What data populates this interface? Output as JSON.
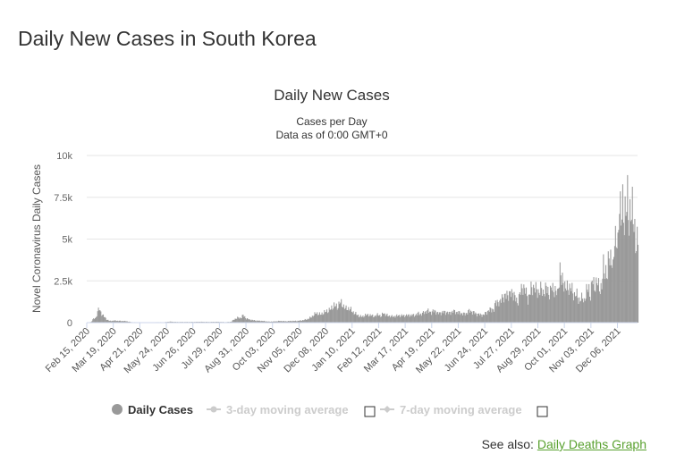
{
  "page": {
    "title": "Daily New Cases in South Korea",
    "see_also_prefix": "See also:",
    "see_also_link": "Daily Deaths Graph"
  },
  "colors": {
    "bars": "#999999",
    "grid": "#e6e6e6",
    "link": "#59a12f",
    "legend_inactive": "#cccccc"
  },
  "chart_data": {
    "type": "bar",
    "title": "Daily New Cases",
    "subtitle_lines": [
      "Cases per Day",
      "Data as of 0:00 GMT+0"
    ],
    "ylabel": "Novel Coronavirus Daily Cases",
    "xlabel": "",
    "ylim": [
      0,
      10000
    ],
    "y_ticks": [
      0,
      2500,
      5000,
      7500,
      10000
    ],
    "y_tick_labels": [
      "0",
      "2.5k",
      "5k",
      "7.5k",
      "10k"
    ],
    "x_range": [
      "2020-02-15",
      "2021-12-31"
    ],
    "x_tick_dates": [
      "2020-02-15",
      "2020-03-19",
      "2020-04-21",
      "2020-05-24",
      "2020-06-26",
      "2020-07-29",
      "2020-08-31",
      "2020-10-03",
      "2020-11-05",
      "2020-12-08",
      "2021-01-10",
      "2021-02-12",
      "2021-03-17",
      "2021-04-19",
      "2021-05-22",
      "2021-06-24",
      "2021-07-27",
      "2021-08-29",
      "2021-10-01",
      "2021-11-03",
      "2021-12-06"
    ],
    "x_tick_labels": [
      "Feb 15, 2020",
      "Mar 19, 2020",
      "Apr 21, 2020",
      "May 24, 2020",
      "Jun 26, 2020",
      "Jul 29, 2020",
      "Aug 31, 2020",
      "Oct 03, 2020",
      "Nov 05, 2020",
      "Dec 08, 2020",
      "Jan 10, 2021",
      "Feb 12, 2021",
      "Mar 17, 2021",
      "Apr 19, 2021",
      "May 22, 2021",
      "Jun 24, 2021",
      "Jul 27, 2021",
      "Aug 29, 2021",
      "Oct 01, 2021",
      "Nov 03, 2021",
      "Dec 06, 2021"
    ],
    "series": [
      {
        "name": "Daily Cases",
        "values": [
          [
            "2020-02-15",
            0
          ],
          [
            "2020-02-20",
            40
          ],
          [
            "2020-02-22",
            200
          ],
          [
            "2020-02-24",
            230
          ],
          [
            "2020-02-26",
            300
          ],
          [
            "2020-02-28",
            700
          ],
          [
            "2020-03-01",
            800
          ],
          [
            "2020-03-03",
            600
          ],
          [
            "2020-03-05",
            480
          ],
          [
            "2020-03-07",
            360
          ],
          [
            "2020-03-10",
            200
          ],
          [
            "2020-03-14",
            100
          ],
          [
            "2020-03-20",
            120
          ],
          [
            "2020-03-27",
            100
          ],
          [
            "2020-04-03",
            90
          ],
          [
            "2020-04-10",
            30
          ],
          [
            "2020-04-17",
            20
          ],
          [
            "2020-04-25",
            10
          ],
          [
            "2020-05-05",
            5
          ],
          [
            "2020-05-12",
            30
          ],
          [
            "2020-05-20",
            20
          ],
          [
            "2020-05-28",
            60
          ],
          [
            "2020-06-05",
            40
          ],
          [
            "2020-06-15",
            40
          ],
          [
            "2020-06-25",
            40
          ],
          [
            "2020-07-05",
            50
          ],
          [
            "2020-07-15",
            40
          ],
          [
            "2020-07-25",
            50
          ],
          [
            "2020-08-05",
            30
          ],
          [
            "2020-08-12",
            50
          ],
          [
            "2020-08-16",
            200
          ],
          [
            "2020-08-20",
            290
          ],
          [
            "2020-08-24",
            280
          ],
          [
            "2020-08-27",
            440
          ],
          [
            "2020-08-31",
            240
          ],
          [
            "2020-09-05",
            170
          ],
          [
            "2020-09-12",
            120
          ],
          [
            "2020-09-20",
            100
          ],
          [
            "2020-09-28",
            60
          ],
          [
            "2020-10-05",
            70
          ],
          [
            "2020-10-12",
            100
          ],
          [
            "2020-10-19",
            80
          ],
          [
            "2020-10-26",
            100
          ],
          [
            "2020-11-02",
            100
          ],
          [
            "2020-11-09",
            140
          ],
          [
            "2020-11-16",
            220
          ],
          [
            "2020-11-21",
            380
          ],
          [
            "2020-11-26",
            580
          ],
          [
            "2020-12-01",
            480
          ],
          [
            "2020-12-06",
            620
          ],
          [
            "2020-12-10",
            700
          ],
          [
            "2020-12-14",
            800
          ],
          [
            "2020-12-18",
            1050
          ],
          [
            "2020-12-22",
            900
          ],
          [
            "2020-12-25",
            1230
          ],
          [
            "2020-12-29",
            1040
          ],
          [
            "2021-01-02",
            820
          ],
          [
            "2021-01-06",
            860
          ],
          [
            "2021-01-10",
            650
          ],
          [
            "2021-01-14",
            520
          ],
          [
            "2021-01-18",
            400
          ],
          [
            "2021-01-22",
            350
          ],
          [
            "2021-01-26",
            450
          ],
          [
            "2021-01-30",
            460
          ],
          [
            "2021-02-03",
            420
          ],
          [
            "2021-02-07",
            380
          ],
          [
            "2021-02-11",
            500
          ],
          [
            "2021-02-15",
            350
          ],
          [
            "2021-02-17",
            620
          ],
          [
            "2021-02-20",
            460
          ],
          [
            "2021-02-25",
            400
          ],
          [
            "2021-03-01",
            360
          ],
          [
            "2021-03-08",
            420
          ],
          [
            "2021-03-15",
            420
          ],
          [
            "2021-03-22",
            440
          ],
          [
            "2021-03-29",
            450
          ],
          [
            "2021-04-02",
            550
          ],
          [
            "2021-04-06",
            500
          ],
          [
            "2021-04-10",
            650
          ],
          [
            "2021-04-14",
            700
          ],
          [
            "2021-04-18",
            600
          ],
          [
            "2021-04-22",
            720
          ],
          [
            "2021-04-26",
            550
          ],
          [
            "2021-05-01",
            600
          ],
          [
            "2021-05-05",
            640
          ],
          [
            "2021-05-10",
            560
          ],
          [
            "2021-05-15",
            680
          ],
          [
            "2021-05-20",
            620
          ],
          [
            "2021-05-25",
            560
          ],
          [
            "2021-05-30",
            500
          ],
          [
            "2021-06-04",
            700
          ],
          [
            "2021-06-09",
            620
          ],
          [
            "2021-06-14",
            500
          ],
          [
            "2021-06-18",
            480
          ],
          [
            "2021-06-22",
            450
          ],
          [
            "2021-06-25",
            600
          ],
          [
            "2021-06-28",
            700
          ],
          [
            "2021-07-01",
            800
          ],
          [
            "2021-07-03",
            800
          ],
          [
            "2021-07-05",
            750
          ],
          [
            "2021-07-07",
            1200
          ],
          [
            "2021-07-09",
            1300
          ],
          [
            "2021-07-12",
            1100
          ],
          [
            "2021-07-15",
            1600
          ],
          [
            "2021-07-18",
            1450
          ],
          [
            "2021-07-21",
            1750
          ],
          [
            "2021-07-24",
            1620
          ],
          [
            "2021-07-28",
            1850
          ],
          [
            "2021-07-31",
            1500
          ],
          [
            "2021-08-03",
            1200
          ],
          [
            "2021-08-06",
            1700
          ],
          [
            "2021-08-10",
            2200
          ],
          [
            "2021-08-13",
            1900
          ],
          [
            "2021-08-16",
            1400
          ],
          [
            "2021-08-20",
            2000
          ],
          [
            "2021-08-24",
            2150
          ],
          [
            "2021-08-28",
            1800
          ],
          [
            "2021-09-01",
            2000
          ],
          [
            "2021-09-04",
            1800
          ],
          [
            "2021-09-08",
            2050
          ],
          [
            "2021-09-12",
            1750
          ],
          [
            "2021-09-15",
            2100
          ],
          [
            "2021-09-19",
            1900
          ],
          [
            "2021-09-22",
            1700
          ],
          [
            "2021-09-25",
            3200
          ],
          [
            "2021-09-27",
            2400
          ],
          [
            "2021-09-29",
            2500
          ],
          [
            "2021-10-02",
            2100
          ],
          [
            "2021-10-05",
            2000
          ],
          [
            "2021-10-08",
            2200
          ],
          [
            "2021-10-12",
            1600
          ],
          [
            "2021-10-15",
            1800
          ],
          [
            "2021-10-18",
            1300
          ],
          [
            "2021-10-21",
            1500
          ],
          [
            "2021-10-25",
            1300
          ],
          [
            "2021-10-28",
            1900
          ],
          [
            "2021-10-31",
            2000
          ],
          [
            "2021-11-02",
            1600
          ],
          [
            "2021-11-04",
            2500
          ],
          [
            "2021-11-07",
            2200
          ],
          [
            "2021-11-10",
            2400
          ],
          [
            "2021-11-13",
            2100
          ],
          [
            "2021-11-16",
            2100
          ],
          [
            "2021-11-18",
            3300
          ],
          [
            "2021-11-21",
            3100
          ],
          [
            "2021-11-23",
            2700
          ],
          [
            "2021-11-25",
            4100
          ],
          [
            "2021-11-28",
            3900
          ],
          [
            "2021-11-30",
            3000
          ],
          [
            "2021-12-02",
            5200
          ],
          [
            "2021-12-04",
            5300
          ],
          [
            "2021-12-06",
            4300
          ],
          [
            "2021-12-08",
            7100
          ],
          [
            "2021-12-10",
            7000
          ],
          [
            "2021-12-12",
            6700
          ],
          [
            "2021-12-14",
            5500
          ],
          [
            "2021-12-16",
            7800
          ],
          [
            "2021-12-18",
            7300
          ],
          [
            "2021-12-20",
            5300
          ],
          [
            "2021-12-22",
            7400
          ],
          [
            "2021-12-24",
            6900
          ],
          [
            "2021-12-26",
            5400
          ],
          [
            "2021-12-28",
            5000
          ],
          [
            "2021-12-30",
            5000
          ]
        ]
      }
    ],
    "legend": [
      {
        "label": "Daily Cases",
        "active": true
      },
      {
        "label": "3-day moving average",
        "active": false
      },
      {
        "label": "7-day moving average",
        "active": false
      }
    ]
  }
}
